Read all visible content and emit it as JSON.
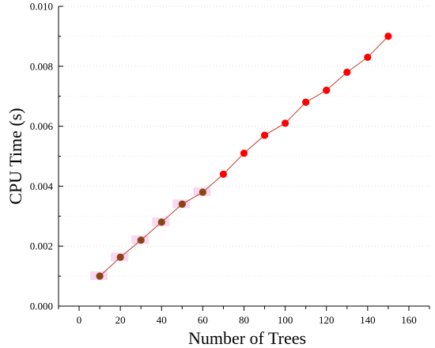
{
  "chart_data": {
    "type": "scatter",
    "xlabel": "Number of Trees",
    "ylabel": "CPU Time (s)",
    "xlim": [
      -10,
      170
    ],
    "ylim": [
      0,
      0.01
    ],
    "x_ticks": [
      "0",
      "20",
      "40",
      "60",
      "80",
      "100",
      "120",
      "140",
      "160"
    ],
    "y_ticks": [
      "0.000",
      "0.002",
      "0.004",
      "0.006",
      "0.008",
      "0.010"
    ],
    "grid": true,
    "series": [
      {
        "x": [
          10,
          20,
          30,
          40,
          50,
          60,
          70,
          80,
          90,
          100,
          110,
          120,
          130,
          140,
          150
        ],
        "y": [
          0.001,
          0.00163,
          0.0022,
          0.0028,
          0.0034,
          0.0038,
          0.0044,
          0.0051,
          0.0057,
          0.0061,
          0.0068,
          0.0072,
          0.0078,
          0.0083,
          0.009
        ],
        "line_color": "#c0392b",
        "marker_colors": [
          "#8b4513",
          "#8b4513",
          "#8b4513",
          "#8b4513",
          "#8b4513",
          "#8b4513",
          "#ff0000",
          "#ff0000",
          "#ff0000",
          "#ff0000",
          "#ff0000",
          "#ff0000",
          "#ff0000",
          "#ff0000",
          "#ff0000"
        ],
        "highlight_color": "#f7c8ee"
      }
    ]
  }
}
